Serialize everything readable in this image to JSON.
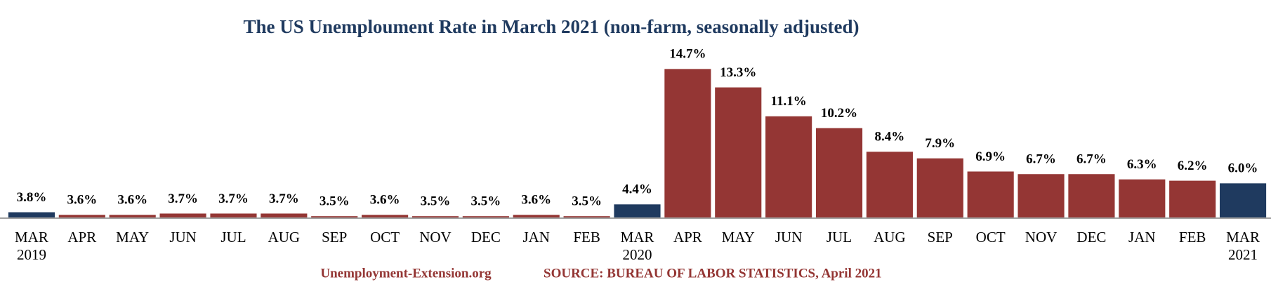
{
  "chart_data": {
    "type": "bar",
    "title": "The US Unemploument Rate in March 2021 (non-farm, seasonally adjusted)",
    "categories": [
      "MAR 2019",
      "APR",
      "MAY",
      "JUN",
      "JUL",
      "AUG",
      "SEP",
      "OCT",
      "NOV",
      "DEC",
      "JAN",
      "FEB",
      "MAR 2020",
      "APR",
      "MAY",
      "JUN",
      "JUL",
      "AUG",
      "SEP",
      "OCT",
      "NOV",
      "DEC",
      "JAN",
      "FEB",
      "MAR 2021"
    ],
    "values": [
      3.8,
      3.6,
      3.6,
      3.7,
      3.7,
      3.7,
      3.5,
      3.6,
      3.5,
      3.5,
      3.6,
      3.5,
      4.4,
      14.7,
      13.3,
      11.1,
      10.2,
      8.4,
      7.9,
      6.9,
      6.7,
      6.7,
      6.3,
      6.2,
      6.0
    ],
    "value_labels": [
      "3.8%",
      "3.6%",
      "3.6%",
      "3.7%",
      "3.7%",
      "3.7%",
      "3.5%",
      "3.6%",
      "3.5%",
      "3.5%",
      "3.6%",
      "3.5%",
      "4.4%",
      "14.7%",
      "13.3%",
      "11.1%",
      "10.2%",
      "8.4%",
      "7.9%",
      "6.9%",
      "6.7%",
      "6.7%",
      "6.3%",
      "6.2%",
      "6.0%"
    ],
    "colors": [
      "#1f3a5f",
      "#943634",
      "#943634",
      "#943634",
      "#943634",
      "#943634",
      "#943634",
      "#943634",
      "#943634",
      "#943634",
      "#943634",
      "#943634",
      "#1f3a5f",
      "#943634",
      "#943634",
      "#943634",
      "#943634",
      "#943634",
      "#943634",
      "#943634",
      "#943634",
      "#943634",
      "#943634",
      "#943634",
      "#1f3a5f"
    ],
    "ylim": [
      3.35,
      16
    ],
    "footer_left": "Unemployment-Extension.org",
    "footer_right": "SOURCE: BUREAU OF LABOR STATISTICS, April 2021"
  }
}
